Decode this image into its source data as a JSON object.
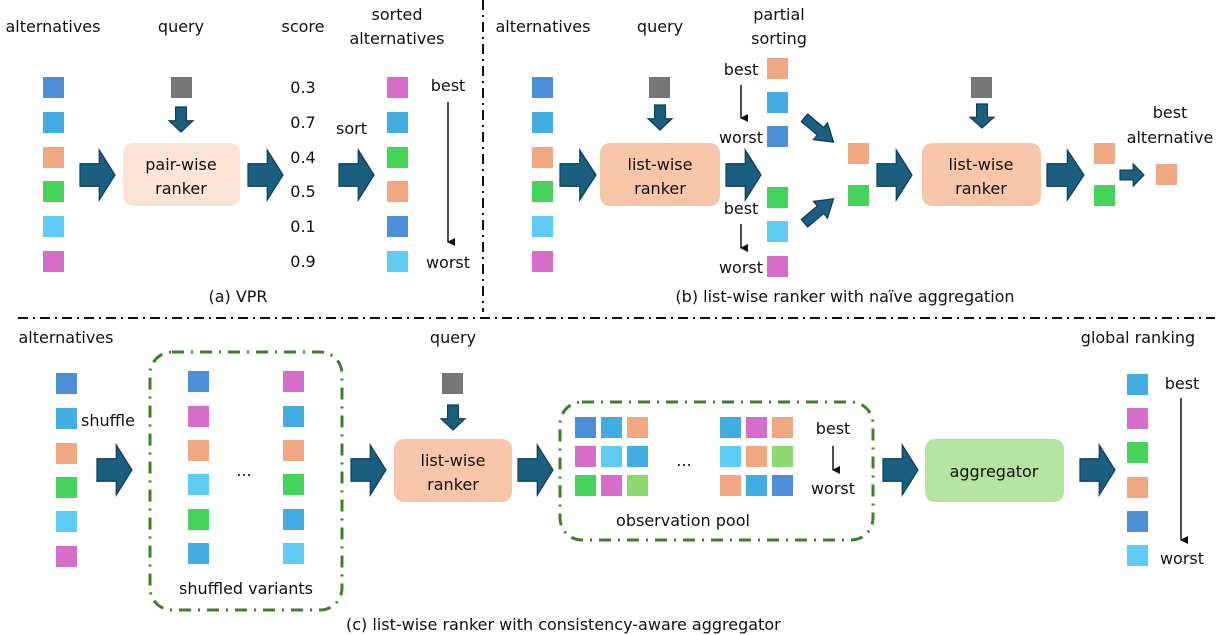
{
  "colors": {
    "blue": "#4c8fd6",
    "sky": "#41ade0",
    "salmon": "#f0a882",
    "green": "#46d35a",
    "cyan": "#5ecbf2",
    "magenta": "#d46ec8",
    "lime": "#8ed872",
    "gray": "#767676",
    "arrow": "#1a5e80",
    "arrow_stroke": "#0e3d55",
    "pairwise_box": "#fbe3d5",
    "listwise_box": "#f7c6a8",
    "aggregator_box": "#b5e3a0",
    "group_border": "#3f7f2a",
    "divider": "#111111"
  },
  "panel_a": {
    "caption": "(a) VPR",
    "alternatives_label": "alternatives",
    "query_label": "query",
    "score_label": "score",
    "sorted_label_line1": "sorted",
    "sorted_label_line2": "alternatives",
    "ranker_line1": "pair-wise",
    "ranker_line2": "ranker",
    "sort_label": "sort",
    "best": "best",
    "worst": "worst",
    "alternatives": [
      "blue",
      "sky",
      "salmon",
      "green",
      "cyan",
      "magenta"
    ],
    "scores": [
      "0.3",
      "0.7",
      "0.4",
      "0.5",
      "0.1",
      "0.9"
    ],
    "sorted": [
      "magenta",
      "sky",
      "green",
      "salmon",
      "blue",
      "cyan"
    ]
  },
  "panel_b": {
    "caption": "(b) list-wise ranker with naïve aggregation",
    "alternatives_label": "alternatives",
    "query_label": "query",
    "partial_label_line1": "partial",
    "partial_label_line2": "sorting",
    "ranker_line1": "list-wise",
    "ranker_line2": "ranker",
    "best": "best",
    "worst": "worst",
    "best_alt_line1": "best",
    "best_alt_line2": "alternative",
    "alternatives": [
      "blue",
      "sky",
      "salmon",
      "green",
      "cyan",
      "magenta"
    ],
    "partial_top": [
      "salmon",
      "sky",
      "blue"
    ],
    "partial_bottom": [
      "green",
      "cyan",
      "magenta"
    ],
    "merged": [
      "salmon",
      "green"
    ],
    "second_output": [
      "salmon",
      "green"
    ],
    "final": [
      "salmon"
    ]
  },
  "panel_c": {
    "caption": "(c) list-wise ranker with consistency-aware aggregator",
    "alternatives_label": "alternatives",
    "shuffle_label": "shuffle",
    "query_label": "query",
    "ellipsis": "...",
    "shuffled_label": "shuffled variants",
    "ranker_line1": "list-wise",
    "ranker_line2": "ranker",
    "pool_label": "observation pool",
    "aggregator_label": "aggregator",
    "global_label": "global ranking",
    "best": "best",
    "worst": "worst",
    "alternatives": [
      "blue",
      "sky",
      "salmon",
      "green",
      "cyan",
      "magenta"
    ],
    "variant_first": [
      "blue",
      "magenta",
      "salmon",
      "cyan",
      "green",
      "sky"
    ],
    "variant_last": [
      "magenta",
      "sky",
      "salmon",
      "green",
      "sky",
      "cyan"
    ],
    "pool_left": [
      [
        "blue",
        "sky",
        "salmon"
      ],
      [
        "magenta",
        "cyan",
        "sky"
      ],
      [
        "green",
        "magenta",
        "lime"
      ]
    ],
    "pool_right": [
      [
        "sky",
        "magenta",
        "salmon"
      ],
      [
        "cyan",
        "salmon",
        "lime"
      ],
      [
        "salmon",
        "sky",
        "blue"
      ]
    ],
    "global": [
      "sky",
      "magenta",
      "green",
      "salmon",
      "blue",
      "cyan"
    ]
  }
}
